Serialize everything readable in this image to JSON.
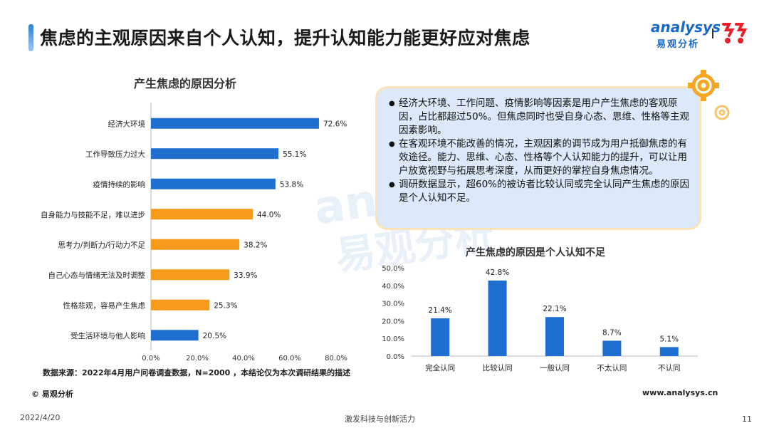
{
  "header": {
    "title": "焦虑的主观原因来自个人认知，提升认知能力能更好应对焦虑",
    "logo_text": "analysys",
    "logo_sub": "易观分析"
  },
  "watermark": {
    "line1": "analysys",
    "line2": "易观分析"
  },
  "colors": {
    "blue": "#1f6fd1",
    "orange": "#f79a1b",
    "accent": "#2f7fd6"
  },
  "chart_data": [
    {
      "type": "bar",
      "orientation": "horizontal",
      "title": "产生焦虑的原因分析",
      "categories": [
        "经济大环境",
        "工作导致压力过大",
        "疫情持续的影响",
        "自身能力与技能不足，难以进步",
        "思考力/判断力/行动力不足",
        "自己心态与情绪无法及时调整",
        "性格悲观，容易产生焦虑",
        "受生活环境与他人影响"
      ],
      "values": [
        72.6,
        55.1,
        53.8,
        44.0,
        38.2,
        33.9,
        25.3,
        20.5
      ],
      "value_labels": [
        "72.6%",
        "55.1%",
        "53.8%",
        "44.0%",
        "38.2%",
        "33.9%",
        "25.3%",
        "20.5%"
      ],
      "bar_colors": [
        "#1f6fd1",
        "#1f6fd1",
        "#1f6fd1",
        "#f79a1b",
        "#f79a1b",
        "#f79a1b",
        "#f79a1b",
        "#1f6fd1"
      ],
      "xlim": [
        0,
        80
      ],
      "x_ticks": [
        "0.0%",
        "20.0%",
        "40.0%",
        "60.0%",
        "80.0%"
      ]
    },
    {
      "type": "bar",
      "title": "产生焦虑的原因是个人认知不足",
      "categories": [
        "完全认同",
        "比较认同",
        "一般认同",
        "不太认同",
        "不认同"
      ],
      "values": [
        21.4,
        42.8,
        22.1,
        8.7,
        5.1
      ],
      "value_labels": [
        "21.4%",
        "42.8%",
        "22.1%",
        "8.7%",
        "5.1%"
      ],
      "ylim": [
        0,
        50
      ],
      "y_ticks": [
        "0.0%",
        "10.0%",
        "20.0%",
        "30.0%",
        "40.0%",
        "50.0%"
      ]
    }
  ],
  "notes": [
    "经济大环境、工作问题、疫情影响等因素是用户产生焦虑的客观原因，占比都超过50%。但焦虑同时也受自身心态、思维、性格等主观因素影响。",
    "在客观环境不能改善的情况，主观因素的调节成为用户抵御焦虑的有效途径。能力、思维、心态、性格等个人认知能力的提升，可以让用户放宽视野与拓展思考深度，从而更好的掌控自身焦虑情况。",
    "调研数据显示，超60%的被访者比较认同或完全认同产生焦虑的原因是个人认知不足。"
  ],
  "footer": {
    "source": "数据来源：2022年4月用户问卷调查数据，N=2000 ，本结论仅为本次调研结果的描述",
    "copyright": "© 易观分析",
    "website": "www.analysys.cn",
    "date": "2022/4/20",
    "slogan": "激发科技与创新活力",
    "page_number": "11"
  }
}
